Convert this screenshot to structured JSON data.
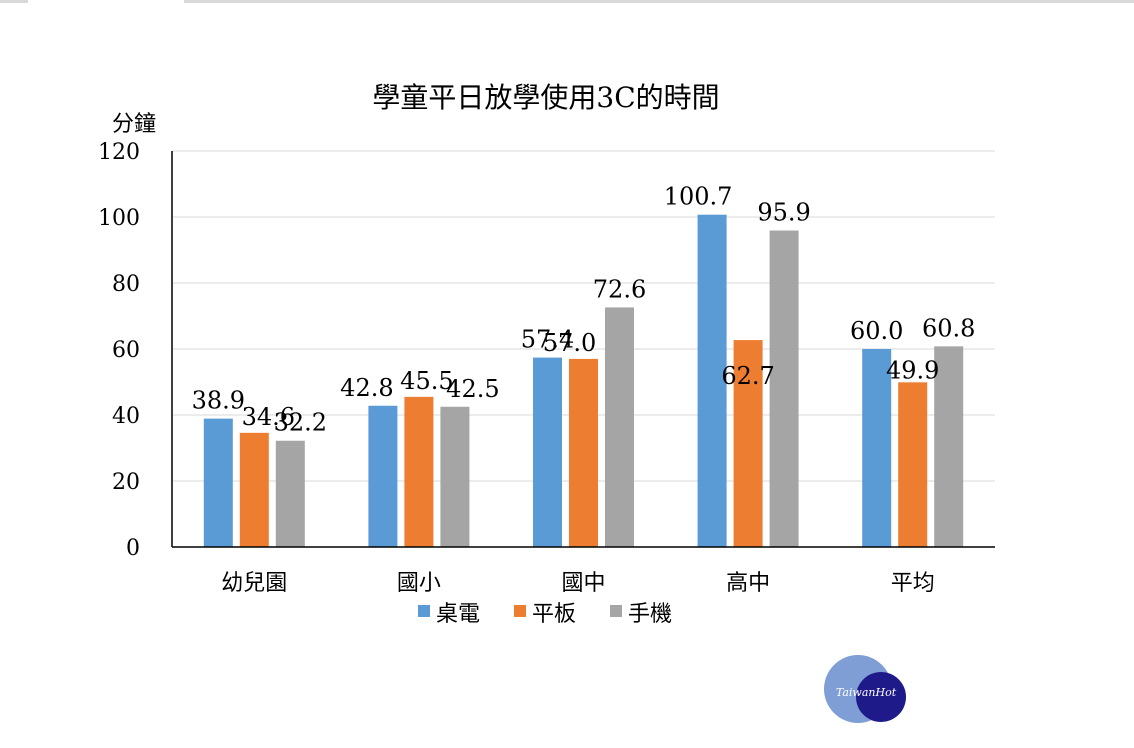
{
  "chart_data": {
    "type": "bar",
    "title": "學童平日放學使用3C的時間",
    "ylabel": "分鐘",
    "xlabel": "",
    "ylim": [
      0,
      120
    ],
    "yticks": [
      "0",
      "20",
      "40",
      "60",
      "80",
      "100",
      "120"
    ],
    "categories": [
      "幼兒園",
      "國小",
      "國中",
      "高中",
      "平均"
    ],
    "series": [
      {
        "name": "桌電",
        "color": "#5b9bd5",
        "values": [
          38.9,
          42.8,
          57.4,
          100.7,
          60.0
        ],
        "labels": [
          "38.9",
          "42.8",
          "57.4",
          "100.7",
          "60.0"
        ]
      },
      {
        "name": "平板",
        "color": "#ed7d31",
        "values": [
          34.6,
          45.5,
          57.0,
          62.7,
          49.9
        ],
        "labels": [
          "34.6",
          "45.5",
          "57.0",
          "62.7",
          "49.9"
        ]
      },
      {
        "name": "手機",
        "color": "#a5a5a5",
        "values": [
          32.2,
          42.5,
          72.6,
          95.9,
          60.8
        ],
        "labels": [
          "32.2",
          "42.5",
          "72.6",
          "95.9",
          "60.8"
        ]
      }
    ],
    "grid": true,
    "legend_position": "bottom"
  },
  "logo": {
    "text": "TaiwanHot",
    "color_light": "#7f9ed6",
    "color_dark": "#1f1a8a"
  }
}
